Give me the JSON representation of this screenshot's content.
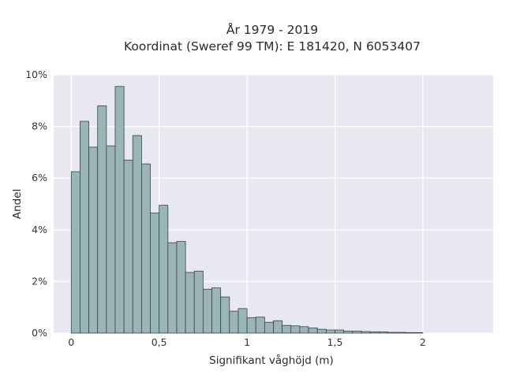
{
  "chart_data": {
    "type": "bar",
    "subtype": "histogram",
    "title_line1": "År 1979 - 2019",
    "title_line2": "Koordinat (Sweref 99 TM): E 181420, N 6053407",
    "xlabel": "Signifikant våghöjd (m)",
    "ylabel": "Andel",
    "x_tick_labels": [
      "0",
      "0,5",
      "1",
      "1,5",
      "2"
    ],
    "x_ticks": [
      0,
      0.5,
      1,
      1.5,
      2
    ],
    "y_tick_labels": [
      "0%",
      "2%",
      "4%",
      "6%",
      "8%",
      "10%"
    ],
    "y_ticks": [
      0,
      2,
      4,
      6,
      8,
      10
    ],
    "xlim": [
      -0.1,
      2.4
    ],
    "ylim": [
      0,
      10
    ],
    "bin_width": 0.05,
    "bin_start": 0,
    "values": [
      6.25,
      8.2,
      7.2,
      8.8,
      7.25,
      9.55,
      6.7,
      7.65,
      6.55,
      4.65,
      4.95,
      3.5,
      3.55,
      2.35,
      2.4,
      1.7,
      1.75,
      1.4,
      0.85,
      0.95,
      0.6,
      0.62,
      0.42,
      0.48,
      0.3,
      0.28,
      0.25,
      0.2,
      0.15,
      0.12,
      0.12,
      0.08,
      0.08,
      0.06,
      0.05,
      0.05,
      0.03,
      0.03,
      0.02,
      0.02
    ],
    "grid": true,
    "colors": {
      "bar_fill": "#9ab5b5",
      "bar_edge": "#3a4444",
      "plot_bg": "#e8e8f0",
      "grid": "#ffffff"
    }
  }
}
